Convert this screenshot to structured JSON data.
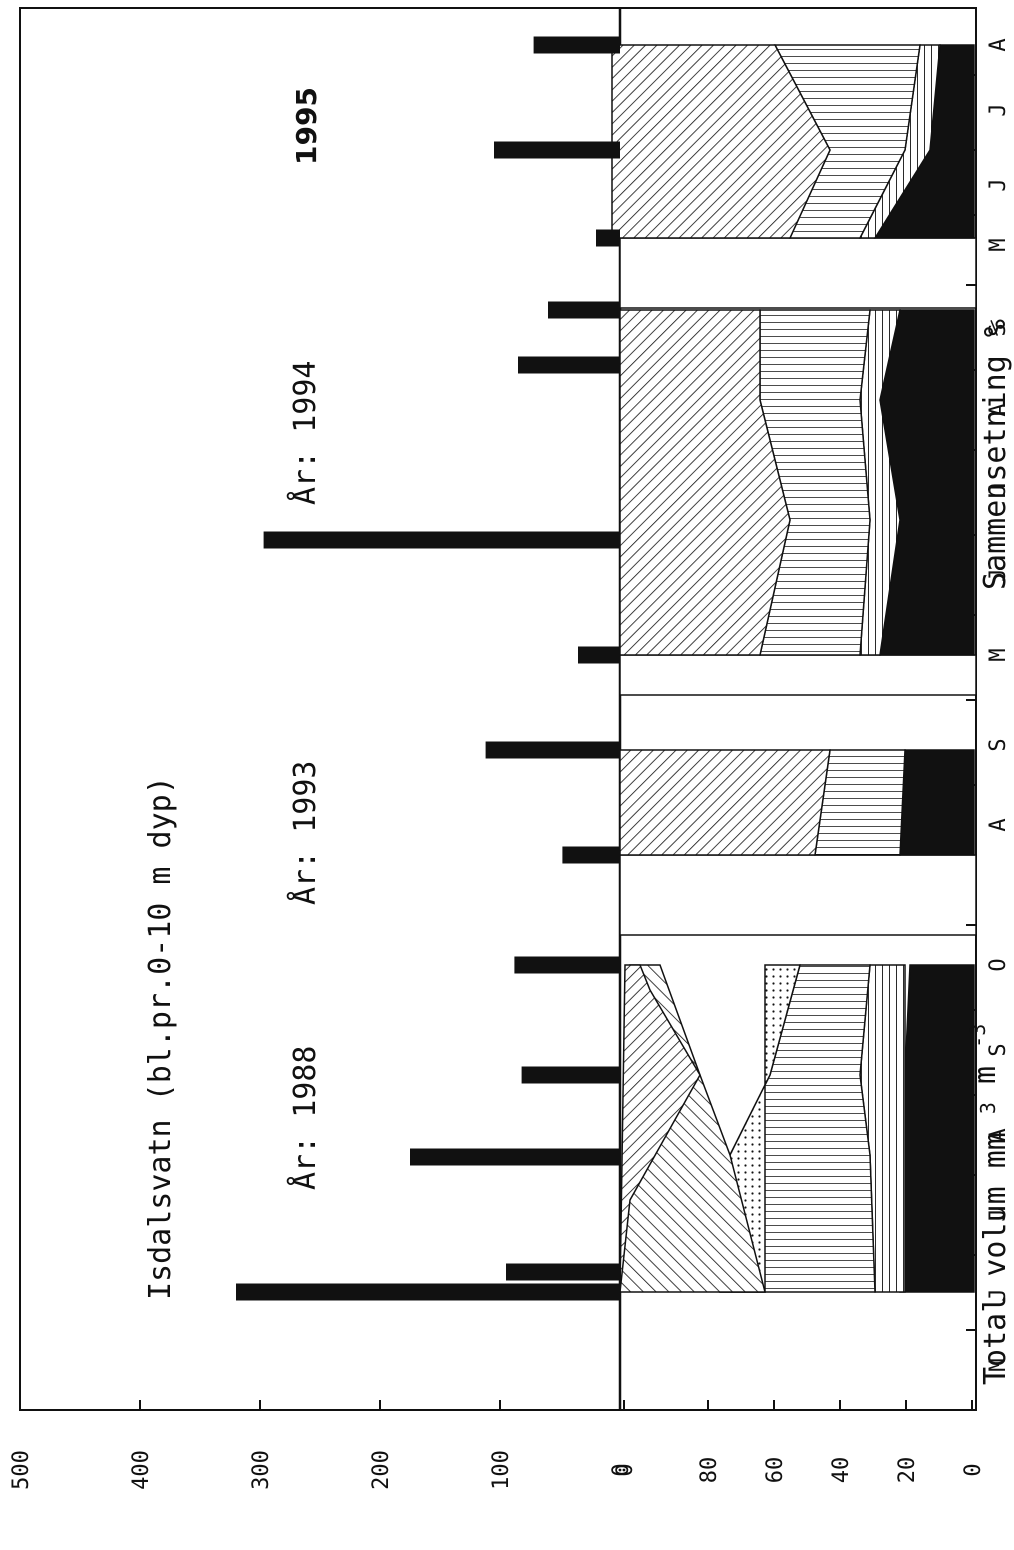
{
  "chart_data": {
    "type": "bar",
    "title": "Isdalsvatn (bl.pr.0-10 m dyp)",
    "top_panel": {
      "ylabel": "Total volum mm",
      "ylabel_unit_main": "3",
      "ylabel_unit_tail": "m",
      "ylabel_unit_exp": "-3",
      "ylim": [
        0,
        500
      ],
      "ticks": [
        "0",
        "100",
        "200",
        "300",
        "400",
        "500"
      ],
      "bars": [
        {
          "year": "1988",
          "month": "J",
          "value": 320
        },
        {
          "year": "1988",
          "month": "J",
          "value": 95
        },
        {
          "year": "1988",
          "month": "A",
          "value": 175
        },
        {
          "year": "1988",
          "month": "S",
          "value": 82
        },
        {
          "year": "1988",
          "month": "O",
          "value": 88
        },
        {
          "year": "1993",
          "month": "A",
          "value": 48
        },
        {
          "year": "1993",
          "month": "S",
          "value": 112
        },
        {
          "year": "1994",
          "month": "M",
          "value": 35
        },
        {
          "year": "1994",
          "month": "J",
          "value": 297
        },
        {
          "year": "1994",
          "month": "A",
          "value": 85
        },
        {
          "year": "1994",
          "month": "S",
          "value": 60
        },
        {
          "year": "1995",
          "month": "M",
          "value": 20
        },
        {
          "year": "1995",
          "month": "J",
          "value": 105
        },
        {
          "year": "1995",
          "month": "A",
          "value": 72
        }
      ]
    },
    "bottom_panel": {
      "type": "area",
      "ylabel": "Sammensetning %",
      "ylim": [
        0,
        100
      ],
      "ticks": [
        "0",
        "20",
        "40",
        "60",
        "80",
        "0"
      ],
      "groups": [
        {
          "year": "1988",
          "points": [
            [
              0,
              0,
              10,
              30,
              30,
              45,
              58,
              100
            ],
            [
              0,
              0,
              20,
              20,
              30,
              58,
              60,
              100
            ],
            [
              0,
              0,
              10,
              12,
              12,
              50,
              50,
              70,
              100
            ],
            [
              0,
              0,
              12,
              15,
              15,
              45,
              55,
              92,
              100
            ],
            [
              0,
              0,
              14,
              15,
              15,
              40,
              40,
              60,
              96,
              100
            ]
          ]
        },
        {
          "year": "1993",
          "points": [
            [
              0,
              0,
              22,
              22,
              22,
              40,
              45,
              100
            ],
            [
              0,
              0,
              8,
              8,
              8,
              38,
              38,
              100
            ]
          ]
        },
        {
          "year": "1994",
          "points": [
            [
              0,
              0,
              28,
              30,
              30,
              40,
              60,
              100
            ],
            [
              0,
              0,
              8,
              10,
              10,
              30,
              45,
              100
            ],
            [
              0,
              0,
              18,
              22,
              22,
              38,
              60,
              100
            ],
            [
              0,
              0,
              15,
              18,
              18,
              38,
              58,
              100
            ]
          ]
        },
        {
          "year": "1995",
          "points": [
            [
              0,
              0,
              40,
              45,
              45,
              50,
              55,
              100
            ],
            [
              0,
              0,
              8,
              20,
              20,
              40,
              40,
              100
            ],
            [
              0,
              0,
              15,
              18,
              18,
              58,
              58,
              100
            ]
          ]
        }
      ]
    },
    "x_axis": {
      "month_labels": [
        "M",
        "J",
        "J",
        "A",
        "S",
        "O",
        "A",
        "S",
        "M",
        "J",
        "J",
        "A",
        "S",
        "M",
        "J",
        "J",
        "A"
      ]
    },
    "annotations": [
      {
        "name": "label-1988",
        "text": "År: 1988"
      },
      {
        "name": "label-1993",
        "text": "År: 1993"
      },
      {
        "name": "label-1994",
        "text": "År: 1994"
      },
      {
        "name": "label-1995",
        "text": "1995"
      }
    ]
  }
}
